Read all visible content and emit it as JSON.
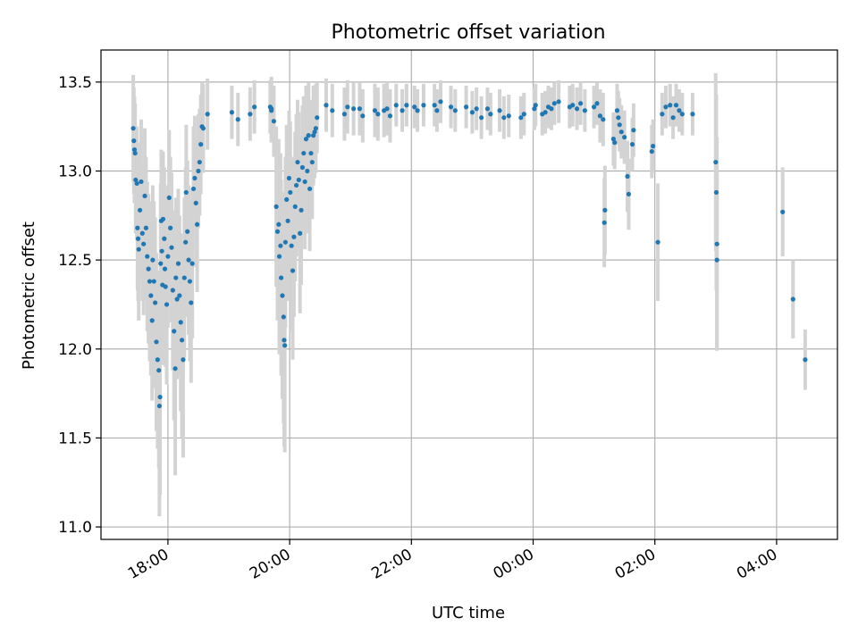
{
  "chart_data": {
    "type": "scatter",
    "title": "Photometric offset variation",
    "xlabel": "UTC time",
    "ylabel": "Photometric offset",
    "x_unit": "hours since 18:00 UTC",
    "xlim": [
      -1.1,
      11.0
    ],
    "ylim": [
      10.93,
      13.68
    ],
    "grid": true,
    "x_ticks": [
      {
        "value": 0,
        "label": "18:00"
      },
      {
        "value": 2,
        "label": "20:00"
      },
      {
        "value": 4,
        "label": "22:00"
      },
      {
        "value": 6,
        "label": "00:00"
      },
      {
        "value": 8,
        "label": "02:00"
      },
      {
        "value": 10,
        "label": "04:00"
      }
    ],
    "y_ticks": [
      {
        "value": 11.0,
        "label": "11.0"
      },
      {
        "value": 11.5,
        "label": "11.5"
      },
      {
        "value": 12.0,
        "label": "12.0"
      },
      {
        "value": 12.5,
        "label": "12.5"
      },
      {
        "value": 13.0,
        "label": "13.0"
      },
      {
        "value": 13.5,
        "label": "13.5"
      }
    ],
    "colors": {
      "point": "#1f77b4",
      "errorbar": "#d3d3d3",
      "grid": "#b0b0b0",
      "axes": "#000000"
    },
    "series": [
      {
        "name": "photometric offset",
        "points": [
          {
            "x": -0.57,
            "y": 13.24,
            "e": 0.3
          },
          {
            "x": -0.56,
            "y": 13.17,
            "e": 0.3
          },
          {
            "x": -0.55,
            "y": 13.12,
            "e": 0.3
          },
          {
            "x": -0.54,
            "y": 13.1,
            "e": 0.28
          },
          {
            "x": -0.53,
            "y": 12.95,
            "e": 0.3
          },
          {
            "x": -0.51,
            "y": 12.93,
            "e": 0.32
          },
          {
            "x": -0.5,
            "y": 12.68,
            "e": 0.35
          },
          {
            "x": -0.49,
            "y": 12.62,
            "e": 0.35
          },
          {
            "x": -0.48,
            "y": 12.56,
            "e": 0.4
          },
          {
            "x": -0.46,
            "y": 12.78,
            "e": 0.38
          },
          {
            "x": -0.44,
            "y": 12.94,
            "e": 0.35
          },
          {
            "x": -0.42,
            "y": 12.65,
            "e": 0.38
          },
          {
            "x": -0.4,
            "y": 12.59,
            "e": 0.4
          },
          {
            "x": -0.38,
            "y": 12.86,
            "e": 0.38
          },
          {
            "x": -0.36,
            "y": 12.68,
            "e": 0.4
          },
          {
            "x": -0.34,
            "y": 12.52,
            "e": 0.42
          },
          {
            "x": -0.32,
            "y": 12.45,
            "e": 0.42
          },
          {
            "x": -0.3,
            "y": 12.38,
            "e": 0.45
          },
          {
            "x": -0.28,
            "y": 12.3,
            "e": 0.45
          },
          {
            "x": -0.26,
            "y": 12.16,
            "e": 0.45
          },
          {
            "x": -0.25,
            "y": 12.5,
            "e": 0.42
          },
          {
            "x": -0.23,
            "y": 12.38,
            "e": 0.45
          },
          {
            "x": -0.21,
            "y": 12.26,
            "e": 0.48
          },
          {
            "x": -0.19,
            "y": 12.04,
            "e": 0.5
          },
          {
            "x": -0.17,
            "y": 11.94,
            "e": 0.5
          },
          {
            "x": -0.15,
            "y": 11.88,
            "e": 0.55
          },
          {
            "x": -0.14,
            "y": 11.68,
            "e": 0.62
          },
          {
            "x": -0.13,
            "y": 11.73,
            "e": 0.55
          },
          {
            "x": -0.12,
            "y": 12.48,
            "e": 0.45
          },
          {
            "x": -0.11,
            "y": 12.72,
            "e": 0.4
          },
          {
            "x": -0.1,
            "y": 12.55,
            "e": 0.42
          },
          {
            "x": -0.09,
            "y": 12.36,
            "e": 0.45
          },
          {
            "x": -0.08,
            "y": 12.73,
            "e": 0.38
          },
          {
            "x": -0.06,
            "y": 12.62,
            "e": 0.4
          },
          {
            "x": -0.05,
            "y": 12.45,
            "e": 0.42
          },
          {
            "x": -0.04,
            "y": 12.35,
            "e": 0.45
          },
          {
            "x": -0.02,
            "y": 12.25,
            "e": 0.45
          },
          {
            "x": 0.0,
            "y": 12.52,
            "e": 0.4
          },
          {
            "x": 0.02,
            "y": 12.85,
            "e": 0.38
          },
          {
            "x": 0.04,
            "y": 12.68,
            "e": 0.4
          },
          {
            "x": 0.06,
            "y": 12.57,
            "e": 0.42
          },
          {
            "x": 0.08,
            "y": 12.33,
            "e": 0.45
          },
          {
            "x": 0.1,
            "y": 12.1,
            "e": 0.5
          },
          {
            "x": 0.12,
            "y": 11.89,
            "e": 0.6
          },
          {
            "x": 0.13,
            "y": 12.4,
            "e": 0.45
          },
          {
            "x": 0.15,
            "y": 12.28,
            "e": 0.45
          },
          {
            "x": 0.17,
            "y": 12.48,
            "e": 0.42
          },
          {
            "x": 0.19,
            "y": 12.3,
            "e": 0.45
          },
          {
            "x": 0.21,
            "y": 12.15,
            "e": 0.5
          },
          {
            "x": 0.23,
            "y": 12.05,
            "e": 0.55
          },
          {
            "x": 0.25,
            "y": 11.94,
            "e": 0.55
          },
          {
            "x": 0.27,
            "y": 12.4,
            "e": 0.45
          },
          {
            "x": 0.29,
            "y": 12.6,
            "e": 0.42
          },
          {
            "x": 0.3,
            "y": 12.88,
            "e": 0.38
          },
          {
            "x": 0.32,
            "y": 12.66,
            "e": 0.4
          },
          {
            "x": 0.34,
            "y": 12.5,
            "e": 0.42
          },
          {
            "x": 0.36,
            "y": 12.38,
            "e": 0.45
          },
          {
            "x": 0.38,
            "y": 12.26,
            "e": 0.45
          },
          {
            "x": 0.4,
            "y": 12.48,
            "e": 0.42
          },
          {
            "x": 0.42,
            "y": 12.9,
            "e": 0.35
          },
          {
            "x": 0.44,
            "y": 12.96,
            "e": 0.35
          },
          {
            "x": 0.46,
            "y": 12.82,
            "e": 0.36
          },
          {
            "x": 0.48,
            "y": 12.7,
            "e": 0.38
          },
          {
            "x": 0.5,
            "y": 13.0,
            "e": 0.32
          },
          {
            "x": 0.52,
            "y": 13.05,
            "e": 0.3
          },
          {
            "x": 0.54,
            "y": 13.15,
            "e": 0.28
          },
          {
            "x": 0.56,
            "y": 13.25,
            "e": 0.25
          },
          {
            "x": 0.58,
            "y": 13.24,
            "e": 0.25
          },
          {
            "x": 0.65,
            "y": 13.32,
            "e": 0.2
          },
          {
            "x": 1.05,
            "y": 13.33,
            "e": 0.15
          },
          {
            "x": 1.15,
            "y": 13.29,
            "e": 0.15
          },
          {
            "x": 1.35,
            "y": 13.32,
            "e": 0.15
          },
          {
            "x": 1.42,
            "y": 13.36,
            "e": 0.15
          },
          {
            "x": 1.7,
            "y": 13.35,
            "e": 0.18
          },
          {
            "x": 1.68,
            "y": 13.36,
            "e": 0.15
          },
          {
            "x": 1.7,
            "y": 13.34,
            "e": 0.18
          },
          {
            "x": 1.74,
            "y": 13.28,
            "e": 0.2
          },
          {
            "x": 1.78,
            "y": 12.8,
            "e": 0.45
          },
          {
            "x": 1.8,
            "y": 12.66,
            "e": 0.5
          },
          {
            "x": 1.82,
            "y": 12.7,
            "e": 0.48
          },
          {
            "x": 1.83,
            "y": 12.52,
            "e": 0.55
          },
          {
            "x": 1.85,
            "y": 12.58,
            "e": 0.52
          },
          {
            "x": 1.86,
            "y": 12.4,
            "e": 0.55
          },
          {
            "x": 1.88,
            "y": 12.3,
            "e": 0.58
          },
          {
            "x": 1.9,
            "y": 12.18,
            "e": 0.6
          },
          {
            "x": 1.91,
            "y": 12.05,
            "e": 0.6
          },
          {
            "x": 1.92,
            "y": 12.02,
            "e": 0.6
          },
          {
            "x": 1.93,
            "y": 12.6,
            "e": 0.48
          },
          {
            "x": 1.95,
            "y": 12.84,
            "e": 0.42
          },
          {
            "x": 1.97,
            "y": 12.72,
            "e": 0.45
          },
          {
            "x": 1.99,
            "y": 12.96,
            "e": 0.38
          },
          {
            "x": 2.01,
            "y": 12.88,
            "e": 0.4
          },
          {
            "x": 2.03,
            "y": 12.58,
            "e": 0.48
          },
          {
            "x": 2.05,
            "y": 12.44,
            "e": 0.5
          },
          {
            "x": 2.07,
            "y": 12.63,
            "e": 0.45
          },
          {
            "x": 2.09,
            "y": 12.8,
            "e": 0.42
          },
          {
            "x": 2.11,
            "y": 12.92,
            "e": 0.4
          },
          {
            "x": 2.13,
            "y": 13.05,
            "e": 0.35
          },
          {
            "x": 2.15,
            "y": 12.95,
            "e": 0.38
          },
          {
            "x": 2.17,
            "y": 12.65,
            "e": 0.45
          },
          {
            "x": 2.19,
            "y": 12.78,
            "e": 0.42
          },
          {
            "x": 2.21,
            "y": 13.02,
            "e": 0.35
          },
          {
            "x": 2.23,
            "y": 13.1,
            "e": 0.32
          },
          {
            "x": 2.25,
            "y": 12.94,
            "e": 0.38
          },
          {
            "x": 2.27,
            "y": 13.18,
            "e": 0.3
          },
          {
            "x": 2.29,
            "y": 13.0,
            "e": 0.35
          },
          {
            "x": 2.31,
            "y": 13.2,
            "e": 0.3
          },
          {
            "x": 2.33,
            "y": 12.9,
            "e": 0.35
          },
          {
            "x": 2.35,
            "y": 13.1,
            "e": 0.3
          },
          {
            "x": 2.37,
            "y": 13.05,
            "e": 0.32
          },
          {
            "x": 2.39,
            "y": 13.2,
            "e": 0.28
          },
          {
            "x": 2.41,
            "y": 13.22,
            "e": 0.26
          },
          {
            "x": 2.43,
            "y": 13.24,
            "e": 0.25
          },
          {
            "x": 2.45,
            "y": 13.3,
            "e": 0.2
          },
          {
            "x": 2.6,
            "y": 13.37,
            "e": 0.15
          },
          {
            "x": 2.7,
            "y": 13.34,
            "e": 0.15
          },
          {
            "x": 2.9,
            "y": 13.32,
            "e": 0.15
          },
          {
            "x": 2.95,
            "y": 13.36,
            "e": 0.15
          },
          {
            "x": 3.05,
            "y": 13.35,
            "e": 0.15
          },
          {
            "x": 3.15,
            "y": 13.35,
            "e": 0.15
          },
          {
            "x": 3.2,
            "y": 13.31,
            "e": 0.15
          },
          {
            "x": 3.4,
            "y": 13.34,
            "e": 0.15
          },
          {
            "x": 3.45,
            "y": 13.32,
            "e": 0.15
          },
          {
            "x": 3.55,
            "y": 13.34,
            "e": 0.15
          },
          {
            "x": 3.6,
            "y": 13.35,
            "e": 0.15
          },
          {
            "x": 3.65,
            "y": 13.31,
            "e": 0.15
          },
          {
            "x": 3.75,
            "y": 13.37,
            "e": 0.12
          },
          {
            "x": 3.85,
            "y": 13.34,
            "e": 0.12
          },
          {
            "x": 3.92,
            "y": 13.37,
            "e": 0.12
          },
          {
            "x": 4.05,
            "y": 13.36,
            "e": 0.12
          },
          {
            "x": 4.1,
            "y": 13.34,
            "e": 0.12
          },
          {
            "x": 4.2,
            "y": 13.37,
            "e": 0.12
          },
          {
            "x": 4.38,
            "y": 13.37,
            "e": 0.12
          },
          {
            "x": 4.42,
            "y": 13.34,
            "e": 0.12
          },
          {
            "x": 4.48,
            "y": 13.39,
            "e": 0.12
          },
          {
            "x": 4.65,
            "y": 13.36,
            "e": 0.12
          },
          {
            "x": 4.72,
            "y": 13.34,
            "e": 0.12
          },
          {
            "x": 4.9,
            "y": 13.36,
            "e": 0.12
          },
          {
            "x": 5.0,
            "y": 13.33,
            "e": 0.12
          },
          {
            "x": 5.07,
            "y": 13.35,
            "e": 0.12
          },
          {
            "x": 5.15,
            "y": 13.3,
            "e": 0.12
          },
          {
            "x": 5.25,
            "y": 13.35,
            "e": 0.12
          },
          {
            "x": 5.3,
            "y": 13.32,
            "e": 0.12
          },
          {
            "x": 5.45,
            "y": 13.34,
            "e": 0.12
          },
          {
            "x": 5.52,
            "y": 13.3,
            "e": 0.12
          },
          {
            "x": 5.6,
            "y": 13.31,
            "e": 0.12
          },
          {
            "x": 5.8,
            "y": 13.3,
            "e": 0.12
          },
          {
            "x": 5.85,
            "y": 13.32,
            "e": 0.12
          },
          {
            "x": 6.02,
            "y": 13.35,
            "e": 0.12
          },
          {
            "x": 6.04,
            "y": 13.37,
            "e": 0.12
          },
          {
            "x": 6.15,
            "y": 13.32,
            "e": 0.12
          },
          {
            "x": 6.2,
            "y": 13.33,
            "e": 0.12
          },
          {
            "x": 6.25,
            "y": 13.36,
            "e": 0.12
          },
          {
            "x": 6.3,
            "y": 13.35,
            "e": 0.12
          },
          {
            "x": 6.35,
            "y": 13.38,
            "e": 0.12
          },
          {
            "x": 6.42,
            "y": 13.39,
            "e": 0.12
          },
          {
            "x": 6.6,
            "y": 13.36,
            "e": 0.12
          },
          {
            "x": 6.65,
            "y": 13.37,
            "e": 0.12
          },
          {
            "x": 6.72,
            "y": 13.35,
            "e": 0.12
          },
          {
            "x": 6.78,
            "y": 13.38,
            "e": 0.12
          },
          {
            "x": 6.85,
            "y": 13.34,
            "e": 0.12
          },
          {
            "x": 7.0,
            "y": 13.36,
            "e": 0.12
          },
          {
            "x": 7.05,
            "y": 13.38,
            "e": 0.12
          },
          {
            "x": 7.1,
            "y": 13.31,
            "e": 0.15
          },
          {
            "x": 7.15,
            "y": 13.29,
            "e": 0.15
          },
          {
            "x": 7.18,
            "y": 12.78,
            "e": 0.25
          },
          {
            "x": 7.17,
            "y": 12.71,
            "e": 0.25
          },
          {
            "x": 7.32,
            "y": 13.18,
            "e": 0.15
          },
          {
            "x": 7.34,
            "y": 13.16,
            "e": 0.15
          },
          {
            "x": 7.38,
            "y": 13.34,
            "e": 0.15
          },
          {
            "x": 7.4,
            "y": 13.3,
            "e": 0.15
          },
          {
            "x": 7.42,
            "y": 13.26,
            "e": 0.15
          },
          {
            "x": 7.45,
            "y": 13.22,
            "e": 0.15
          },
          {
            "x": 7.5,
            "y": 13.19,
            "e": 0.15
          },
          {
            "x": 7.55,
            "y": 12.97,
            "e": 0.2
          },
          {
            "x": 7.57,
            "y": 12.87,
            "e": 0.2
          },
          {
            "x": 7.63,
            "y": 13.15,
            "e": 0.15
          },
          {
            "x": 7.65,
            "y": 13.23,
            "e": 0.15
          },
          {
            "x": 7.95,
            "y": 13.11,
            "e": 0.15
          },
          {
            "x": 7.97,
            "y": 13.14,
            "e": 0.15
          },
          {
            "x": 8.05,
            "y": 12.6,
            "e": 0.33
          },
          {
            "x": 8.12,
            "y": 13.32,
            "e": 0.12
          },
          {
            "x": 8.18,
            "y": 13.36,
            "e": 0.12
          },
          {
            "x": 8.25,
            "y": 13.37,
            "e": 0.12
          },
          {
            "x": 8.3,
            "y": 13.3,
            "e": 0.12
          },
          {
            "x": 8.35,
            "y": 13.37,
            "e": 0.12
          },
          {
            "x": 8.4,
            "y": 13.34,
            "e": 0.12
          },
          {
            "x": 8.45,
            "y": 13.32,
            "e": 0.12
          },
          {
            "x": 8.62,
            "y": 13.32,
            "e": 0.12
          },
          {
            "x": 9.0,
            "y": 13.05,
            "e": 0.5
          },
          {
            "x": 9.01,
            "y": 12.88,
            "e": 0.55
          },
          {
            "x": 9.02,
            "y": 12.59,
            "e": 0.6
          },
          {
            "x": 9.02,
            "y": 12.5,
            "e": 0.5
          },
          {
            "x": 10.1,
            "y": 12.77,
            "e": 0.25
          },
          {
            "x": 10.27,
            "y": 12.28,
            "e": 0.22
          },
          {
            "x": 10.47,
            "y": 11.94,
            "e": 0.17
          }
        ]
      }
    ]
  }
}
